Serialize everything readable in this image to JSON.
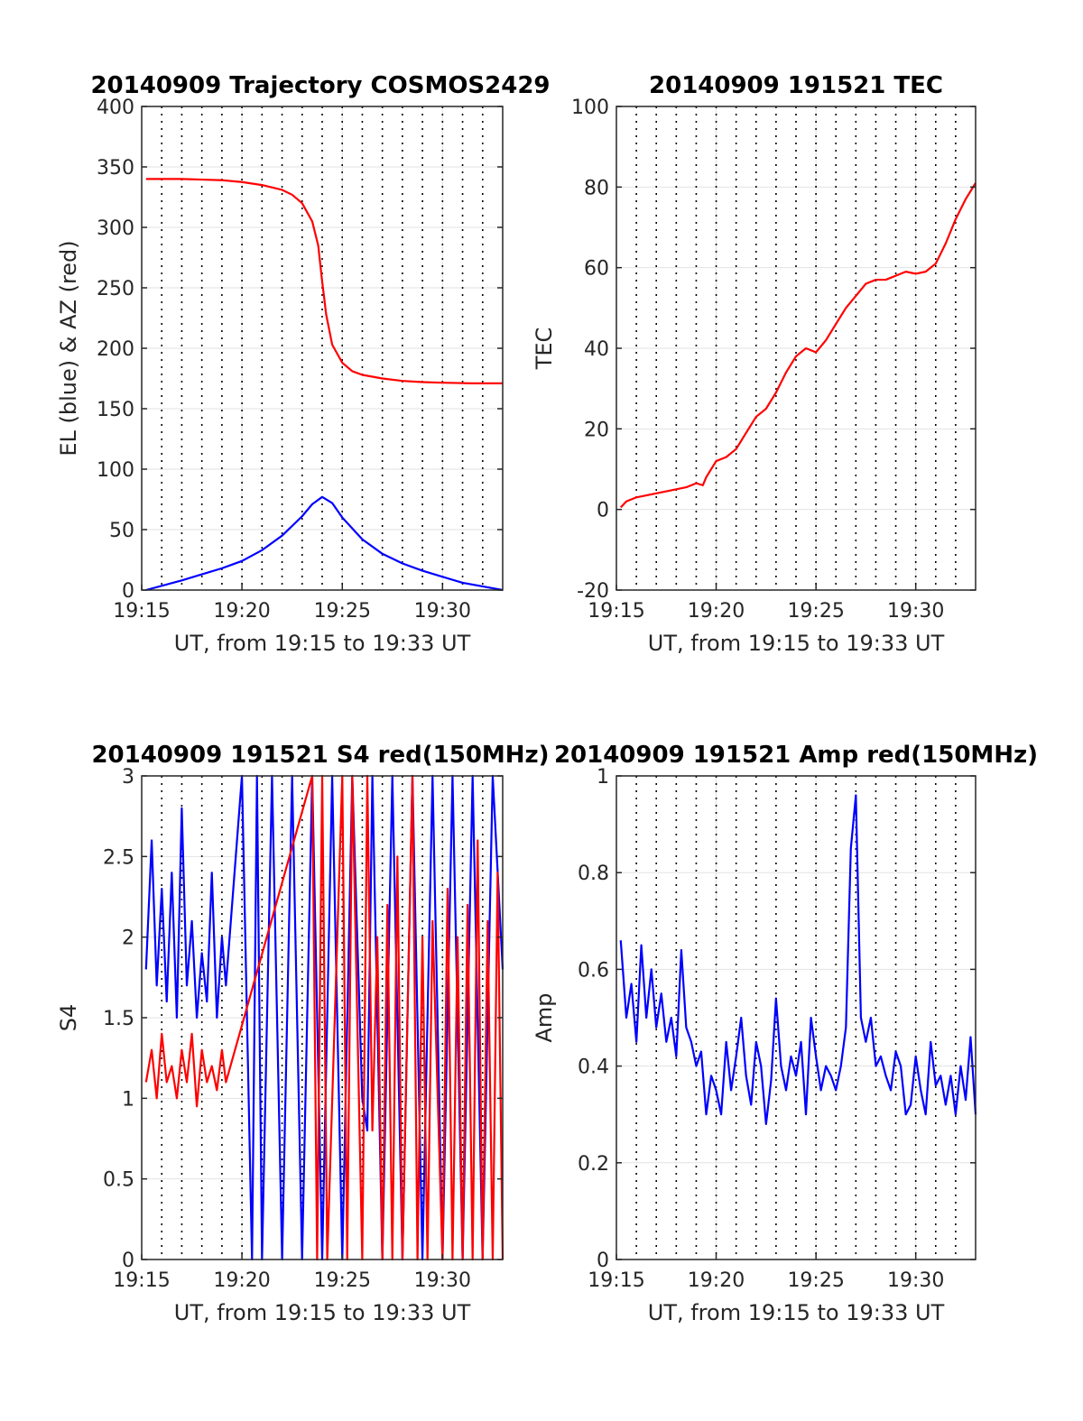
{
  "colors": {
    "red": "#ff0000",
    "blue": "#0000ff",
    "grid": "#e2e2e2",
    "axis": "#262626"
  },
  "chart_data": [
    {
      "type": "line",
      "title": "20140909 Trajectory COSMOS2429",
      "xlabel": "UT, from 19:15 to 19:33 UT",
      "ylabel": "EL (blue) & AZ (red)",
      "xlim": [
        19.25,
        19.55
      ],
      "ylim": [
        0,
        400
      ],
      "xticks": [
        {
          "v": 19.25,
          "label": "19:15"
        },
        {
          "v": 19.3333,
          "label": "19:20"
        },
        {
          "v": 19.4167,
          "label": "19:25"
        },
        {
          "v": 19.5,
          "label": "19:30"
        }
      ],
      "yticks": [
        {
          "v": 0,
          "label": "0"
        },
        {
          "v": 50,
          "label": "50"
        },
        {
          "v": 100,
          "label": "100"
        },
        {
          "v": 150,
          "label": "150"
        },
        {
          "v": 200,
          "label": "200"
        },
        {
          "v": 250,
          "label": "250"
        },
        {
          "v": 300,
          "label": "300"
        },
        {
          "v": 350,
          "label": "350"
        },
        {
          "v": 400,
          "label": "400"
        }
      ],
      "grid": "dotted vertical + light horizontal",
      "series": [
        {
          "color": "#ff0000",
          "x": [
            19.2536,
            19.2833,
            19.3,
            19.3167,
            19.3333,
            19.35,
            19.3667,
            19.375,
            19.3833,
            19.3917,
            19.3967,
            19.4,
            19.4033,
            19.4083,
            19.4167,
            19.425,
            19.4333,
            19.45,
            19.4667,
            19.4833,
            19.5,
            19.525,
            19.55
          ],
          "y": [
            340,
            340,
            339.5,
            339,
            337.5,
            335,
            331,
            327,
            320,
            305,
            285,
            255,
            228,
            203,
            188,
            181,
            178,
            175,
            173,
            172,
            171.5,
            171,
            171
          ]
        },
        {
          "color": "#0000ff",
          "x": [
            19.2536,
            19.2833,
            19.3,
            19.3167,
            19.3333,
            19.35,
            19.3667,
            19.3833,
            19.3917,
            19.4,
            19.4083,
            19.4167,
            19.4333,
            19.45,
            19.4667,
            19.4833,
            19.5,
            19.5167,
            19.5333,
            19.55
          ],
          "y": [
            0,
            8,
            13,
            18,
            24,
            33,
            45,
            61,
            71,
            77,
            72,
            60,
            42,
            30,
            22,
            16,
            11,
            6,
            3,
            0
          ]
        }
      ]
    },
    {
      "type": "line",
      "title": "20140909 191521 TEC",
      "xlabel": "UT, from 19:15 to 19:33 UT",
      "ylabel": "TEC",
      "xlim": [
        19.25,
        19.55
      ],
      "ylim": [
        -20,
        100
      ],
      "xticks": [
        {
          "v": 19.25,
          "label": "19:15"
        },
        {
          "v": 19.3333,
          "label": "19:20"
        },
        {
          "v": 19.4167,
          "label": "19:25"
        },
        {
          "v": 19.5,
          "label": "19:30"
        }
      ],
      "yticks": [
        {
          "v": -20,
          "label": "-20"
        },
        {
          "v": 0,
          "label": "0"
        },
        {
          "v": 20,
          "label": "20"
        },
        {
          "v": 40,
          "label": "40"
        },
        {
          "v": 60,
          "label": "60"
        },
        {
          "v": 80,
          "label": "80"
        },
        {
          "v": 100,
          "label": "100"
        }
      ],
      "grid": "dotted vertical + light horizontal",
      "series": [
        {
          "color": "#ff0000",
          "x": [
            19.2536,
            19.2583,
            19.2667,
            19.275,
            19.2833,
            19.2917,
            19.3,
            19.3083,
            19.3167,
            19.3222,
            19.325,
            19.3333,
            19.3417,
            19.35,
            19.3583,
            19.3667,
            19.375,
            19.3833,
            19.3917,
            19.4,
            19.4083,
            19.4167,
            19.425,
            19.4333,
            19.4417,
            19.45,
            19.4583,
            19.4667,
            19.475,
            19.4833,
            19.4917,
            19.5,
            19.5083,
            19.5167,
            19.525,
            19.5333,
            19.5417,
            19.55
          ],
          "y": [
            0.5,
            2,
            3,
            3.5,
            4,
            4.5,
            5,
            5.5,
            6.5,
            6,
            8,
            12,
            13,
            15,
            19,
            23,
            25,
            29,
            34,
            38,
            40,
            39,
            42,
            46,
            50,
            53,
            56,
            57,
            57,
            58,
            59,
            58.5,
            59,
            61,
            66,
            72,
            77,
            81
          ]
        }
      ]
    },
    {
      "type": "line",
      "title": "20140909 191521 S4 red(150MHz)",
      "xlabel": "UT, from 19:15 to 19:33 UT",
      "ylabel": "S4",
      "xlim": [
        19.25,
        19.55
      ],
      "ylim": [
        0,
        3
      ],
      "xticks": [
        {
          "v": 19.25,
          "label": "19:15"
        },
        {
          "v": 19.3333,
          "label": "19:20"
        },
        {
          "v": 19.4167,
          "label": "19:25"
        },
        {
          "v": 19.5,
          "label": "19:30"
        }
      ],
      "yticks": [
        {
          "v": 0,
          "label": "0"
        },
        {
          "v": 0.5,
          "label": "0.5"
        },
        {
          "v": 1,
          "label": "1"
        },
        {
          "v": 1.5,
          "label": "1.5"
        },
        {
          "v": 2,
          "label": "2"
        },
        {
          "v": 2.5,
          "label": "2.5"
        },
        {
          "v": 3,
          "label": "3"
        }
      ],
      "grid": "dotted vertical + light horizontal",
      "series": [
        {
          "color": "#0000ff",
          "x": [
            19.2536,
            19.2583,
            19.2625,
            19.2667,
            19.2708,
            19.275,
            19.2792,
            19.2833,
            19.2875,
            19.2917,
            19.2958,
            19.3,
            19.3042,
            19.3083,
            19.3125,
            19.3167,
            19.32,
            19.3333,
            19.3417,
            19.3458,
            19.35,
            19.3583,
            19.3667,
            19.375,
            19.3833,
            19.3917,
            19.4,
            19.4083,
            19.4167,
            19.425,
            19.4333,
            19.4375,
            19.4417,
            19.45,
            19.4583,
            19.4667,
            19.475,
            19.4833,
            19.4917,
            19.5,
            19.5083,
            19.5167,
            19.525,
            19.5333,
            19.5417,
            19.55
          ],
          "y": [
            1.8,
            2.6,
            1.7,
            2.3,
            1.6,
            2.4,
            1.5,
            2.8,
            1.7,
            2.1,
            1.5,
            1.9,
            1.6,
            2.4,
            1.5,
            2.0,
            1.7,
            3.0,
            0,
            3.0,
            0,
            3.0,
            0,
            3.0,
            0,
            3.0,
            0,
            3.0,
            0,
            3.0,
            1.0,
            0.8,
            3.0,
            0,
            3.0,
            0,
            3.0,
            0,
            3.0,
            0,
            3.0,
            0,
            3.0,
            0,
            3.0,
            1.8
          ]
        },
        {
          "color": "#ff0000",
          "x": [
            19.2536,
            19.2583,
            19.2625,
            19.2667,
            19.2708,
            19.275,
            19.2792,
            19.2833,
            19.2875,
            19.2917,
            19.2958,
            19.3,
            19.3042,
            19.3083,
            19.3125,
            19.3167,
            19.32,
            19.3917,
            19.3958,
            19.4,
            19.4042,
            19.4167,
            19.4208,
            19.425,
            19.4333,
            19.4375,
            19.4417,
            19.4458,
            19.45,
            19.4542,
            19.4583,
            19.4625,
            19.4667,
            19.475,
            19.4792,
            19.4833,
            19.4875,
            19.4917,
            19.5,
            19.5042,
            19.5083,
            19.5125,
            19.5167,
            19.5208,
            19.525,
            19.5292,
            19.5333,
            19.5375,
            19.5417,
            19.5458,
            19.55
          ],
          "y": [
            1.1,
            1.3,
            1.0,
            1.4,
            1.1,
            1.2,
            1.0,
            1.3,
            1.1,
            1.4,
            0.95,
            1.3,
            1.1,
            1.2,
            1.05,
            1.3,
            1.1,
            3.0,
            0,
            3.0,
            0,
            3.0,
            0,
            3.0,
            0,
            3.0,
            0.8,
            2.0,
            0,
            2.2,
            0,
            2.5,
            0,
            3.0,
            0,
            2.0,
            0,
            2.1,
            0,
            2.3,
            0,
            2.0,
            0,
            2.2,
            0,
            2.6,
            0,
            2.1,
            0,
            2.4,
            0
          ]
        }
      ]
    },
    {
      "type": "line",
      "title": "20140909 191521 Amp red(150MHz)",
      "xlabel": "UT, from 19:15 to 19:33 UT",
      "ylabel": "Amp",
      "xlim": [
        19.25,
        19.55
      ],
      "ylim": [
        0,
        1
      ],
      "xticks": [
        {
          "v": 19.25,
          "label": "19:15"
        },
        {
          "v": 19.3333,
          "label": "19:20"
        },
        {
          "v": 19.4167,
          "label": "19:25"
        },
        {
          "v": 19.5,
          "label": "19:30"
        }
      ],
      "yticks": [
        {
          "v": 0,
          "label": "0"
        },
        {
          "v": 0.2,
          "label": "0.2"
        },
        {
          "v": 0.4,
          "label": "0.4"
        },
        {
          "v": 0.6,
          "label": "0.6"
        },
        {
          "v": 0.8,
          "label": "0.8"
        },
        {
          "v": 1,
          "label": "1"
        }
      ],
      "grid": "dotted vertical + light horizontal",
      "series": [
        {
          "color": "#0000ff",
          "x": [
            19.2536,
            19.2583,
            19.2625,
            19.2667,
            19.2708,
            19.275,
            19.2792,
            19.2833,
            19.2875,
            19.2917,
            19.2958,
            19.3,
            19.3042,
            19.3083,
            19.3125,
            19.3167,
            19.3208,
            19.325,
            19.3292,
            19.3333,
            19.3375,
            19.3417,
            19.3458,
            19.35,
            19.3542,
            19.3583,
            19.3625,
            19.3667,
            19.3708,
            19.375,
            19.3792,
            19.3833,
            19.3875,
            19.3917,
            19.3958,
            19.4,
            19.4042,
            19.4083,
            19.4125,
            19.4167,
            19.4208,
            19.425,
            19.4292,
            19.4333,
            19.4375,
            19.4417,
            19.4458,
            19.45,
            19.4542,
            19.4583,
            19.4625,
            19.4667,
            19.4708,
            19.475,
            19.4792,
            19.4833,
            19.4875,
            19.4917,
            19.4958,
            19.5,
            19.5042,
            19.5083,
            19.5125,
            19.5167,
            19.5208,
            19.525,
            19.5292,
            19.5333,
            19.5375,
            19.5417,
            19.5458,
            19.55
          ],
          "y": [
            0.66,
            0.5,
            0.57,
            0.45,
            0.65,
            0.5,
            0.6,
            0.48,
            0.55,
            0.45,
            0.5,
            0.42,
            0.64,
            0.48,
            0.45,
            0.4,
            0.43,
            0.3,
            0.38,
            0.35,
            0.3,
            0.45,
            0.35,
            0.42,
            0.5,
            0.38,
            0.32,
            0.45,
            0.4,
            0.28,
            0.37,
            0.54,
            0.4,
            0.35,
            0.42,
            0.38,
            0.45,
            0.3,
            0.5,
            0.42,
            0.35,
            0.4,
            0.38,
            0.35,
            0.4,
            0.48,
            0.85,
            0.96,
            0.5,
            0.45,
            0.5,
            0.4,
            0.42,
            0.38,
            0.35,
            0.43,
            0.4,
            0.3,
            0.32,
            0.42,
            0.35,
            0.3,
            0.45,
            0.36,
            0.38,
            0.32,
            0.38,
            0.3,
            0.4,
            0.33,
            0.46,
            0.3
          ]
        }
      ]
    }
  ]
}
